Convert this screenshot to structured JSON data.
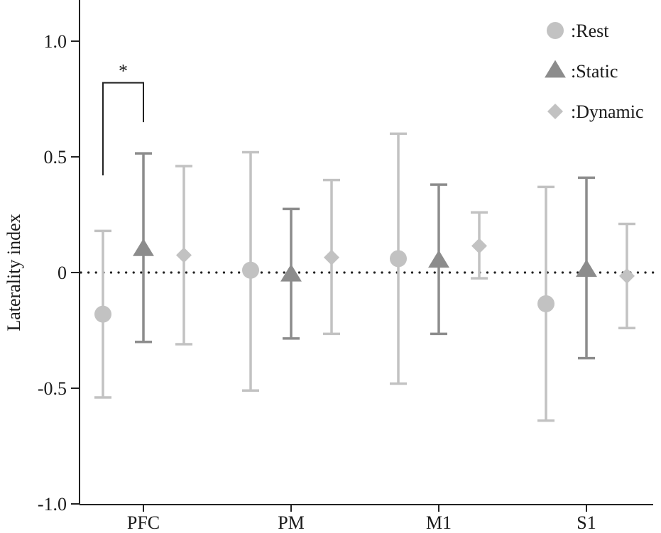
{
  "chart_data": {
    "type": "scatter",
    "categories": [
      "PFC",
      "PM",
      "M1",
      "S1"
    ],
    "ylabel": "Laterality index",
    "ylim": [
      -1.0,
      1.1
    ],
    "yticks": [
      {
        "value": 1.0,
        "label": "1.0"
      },
      {
        "value": 0.5,
        "label": "0.5"
      },
      {
        "value": 0,
        "label": "0"
      },
      {
        "value": -0.5,
        "label": "-0.5"
      },
      {
        "value": -1.0,
        "label": "-1.0"
      }
    ],
    "reference_line": {
      "y": 0,
      "style": "dotted"
    },
    "legend": {
      "position": "top-right"
    },
    "series": [
      {
        "name": ":Rest",
        "marker": "circle",
        "color": "#c2c2c2",
        "points": [
          {
            "category": "PFC",
            "mean": -0.18,
            "lower": -0.54,
            "upper": 0.18
          },
          {
            "category": "PM",
            "mean": 0.01,
            "lower": -0.51,
            "upper": 0.52
          },
          {
            "category": "M1",
            "mean": 0.06,
            "lower": -0.48,
            "upper": 0.6
          },
          {
            "category": "S1",
            "mean": -0.135,
            "lower": -0.64,
            "upper": 0.37
          }
        ]
      },
      {
        "name": ":Static",
        "marker": "triangle",
        "color": "#8c8c8c",
        "points": [
          {
            "category": "PFC",
            "mean": 0.1,
            "lower": -0.3,
            "upper": 0.515
          },
          {
            "category": "PM",
            "mean": -0.01,
            "lower": -0.285,
            "upper": 0.275
          },
          {
            "category": "M1",
            "mean": 0.05,
            "lower": -0.265,
            "upper": 0.38
          },
          {
            "category": "S1",
            "mean": 0.01,
            "lower": -0.37,
            "upper": 0.41
          }
        ]
      },
      {
        "name": ":Dynamic",
        "marker": "diamond",
        "color": "#c2c2c2",
        "points": [
          {
            "category": "PFC",
            "mean": 0.075,
            "lower": -0.31,
            "upper": 0.46
          },
          {
            "category": "PM",
            "mean": 0.065,
            "lower": -0.265,
            "upper": 0.4
          },
          {
            "category": "M1",
            "mean": 0.115,
            "lower": -0.025,
            "upper": 0.26
          },
          {
            "category": "S1",
            "mean": -0.015,
            "lower": -0.24,
            "upper": 0.21
          }
        ]
      }
    ],
    "annotations": [
      {
        "type": "significance-bracket",
        "label": "*",
        "category": "PFC",
        "between": [
          ":Rest",
          ":Static"
        ],
        "y_top": 0.82,
        "y_left_end": 0.42,
        "y_right_end": 0.65
      }
    ]
  }
}
